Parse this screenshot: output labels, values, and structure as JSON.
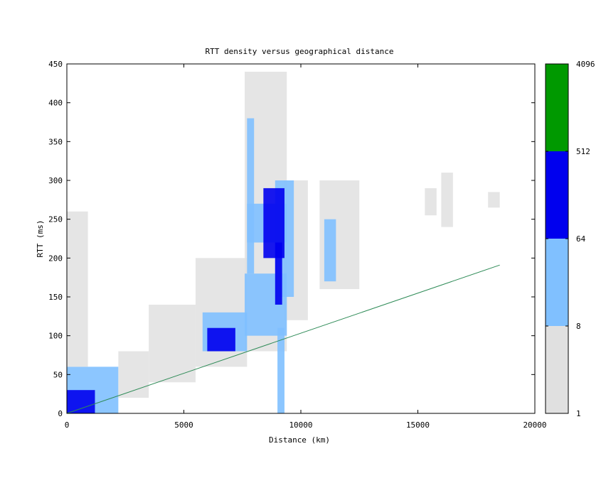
{
  "chart_data": {
    "type": "heatmap",
    "title": "RTT density versus geographical distance",
    "xlabel": "Distance (km)",
    "ylabel": "RTT (ms)",
    "xlim": [
      0,
      20000
    ],
    "ylim": [
      0,
      450
    ],
    "x_ticks": [
      "0",
      "5000",
      "10000",
      "15000",
      "20000"
    ],
    "y_ticks": [
      "0",
      "50",
      "100",
      "150",
      "200",
      "250",
      "300",
      "350",
      "400",
      "450"
    ],
    "colorbar": {
      "scale": "log",
      "levels": [
        {
          "from": 1,
          "to": 8,
          "color": "#e0e0e0"
        },
        {
          "from": 8,
          "to": 64,
          "color": "#80c0ff"
        },
        {
          "from": 64,
          "to": 512,
          "color": "#0000ee"
        },
        {
          "from": 512,
          "to": 4096,
          "color": "#009900"
        }
      ],
      "tick_labels": [
        "1",
        "8",
        "64",
        "512",
        "4096"
      ]
    },
    "reference_line": {
      "color": "#2e8b57",
      "points": [
        [
          0,
          0
        ],
        [
          18500,
          191
        ]
      ]
    },
    "density_regions": [
      {
        "x": [
          0,
          2200
        ],
        "y": [
          0,
          60
        ],
        "level": 1
      },
      {
        "x": [
          0,
          900
        ],
        "y": [
          60,
          260
        ],
        "level": 0
      },
      {
        "x": [
          2200,
          3500
        ],
        "y": [
          20,
          80
        ],
        "level": 0
      },
      {
        "x": [
          3500,
          5500
        ],
        "y": [
          40,
          140
        ],
        "level": 0
      },
      {
        "x": [
          5500,
          7700
        ],
        "y": [
          60,
          200
        ],
        "level": 0
      },
      {
        "x": [
          7600,
          9400
        ],
        "y": [
          80,
          440
        ],
        "level": 0
      },
      {
        "x": [
          9300,
          10300
        ],
        "y": [
          120,
          300
        ],
        "level": 0
      },
      {
        "x": [
          10800,
          12500
        ],
        "y": [
          160,
          300
        ],
        "level": 0
      },
      {
        "x": [
          5800,
          7700
        ],
        "y": [
          80,
          130
        ],
        "level": 1
      },
      {
        "x": [
          7600,
          9400
        ],
        "y": [
          100,
          180
        ],
        "level": 1
      },
      {
        "x": [
          7700,
          9400
        ],
        "y": [
          220,
          270
        ],
        "level": 1
      },
      {
        "x": [
          7700,
          8000
        ],
        "y": [
          180,
          380
        ],
        "level": 1
      },
      {
        "x": [
          8900,
          9700
        ],
        "y": [
          150,
          300
        ],
        "level": 1
      },
      {
        "x": [
          11000,
          11500
        ],
        "y": [
          170,
          250
        ],
        "level": 1
      },
      {
        "x": [
          16000,
          16500
        ],
        "y": [
          240,
          310
        ],
        "level": 0
      },
      {
        "x": [
          18000,
          18500
        ],
        "y": [
          265,
          285
        ],
        "level": 0
      },
      {
        "x": [
          15300,
          15800
        ],
        "y": [
          255,
          290
        ],
        "level": 0
      },
      {
        "x": [
          0,
          1200
        ],
        "y": [
          0,
          30
        ],
        "level": 2
      },
      {
        "x": [
          6000,
          7200
        ],
        "y": [
          80,
          110
        ],
        "level": 2
      },
      {
        "x": [
          8400,
          9300
        ],
        "y": [
          200,
          290
        ],
        "level": 2
      },
      {
        "x": [
          8900,
          9200
        ],
        "y": [
          140,
          220
        ],
        "level": 2
      },
      {
        "x": [
          9000,
          9300
        ],
        "y": [
          0,
          110
        ],
        "level": 1
      }
    ]
  }
}
